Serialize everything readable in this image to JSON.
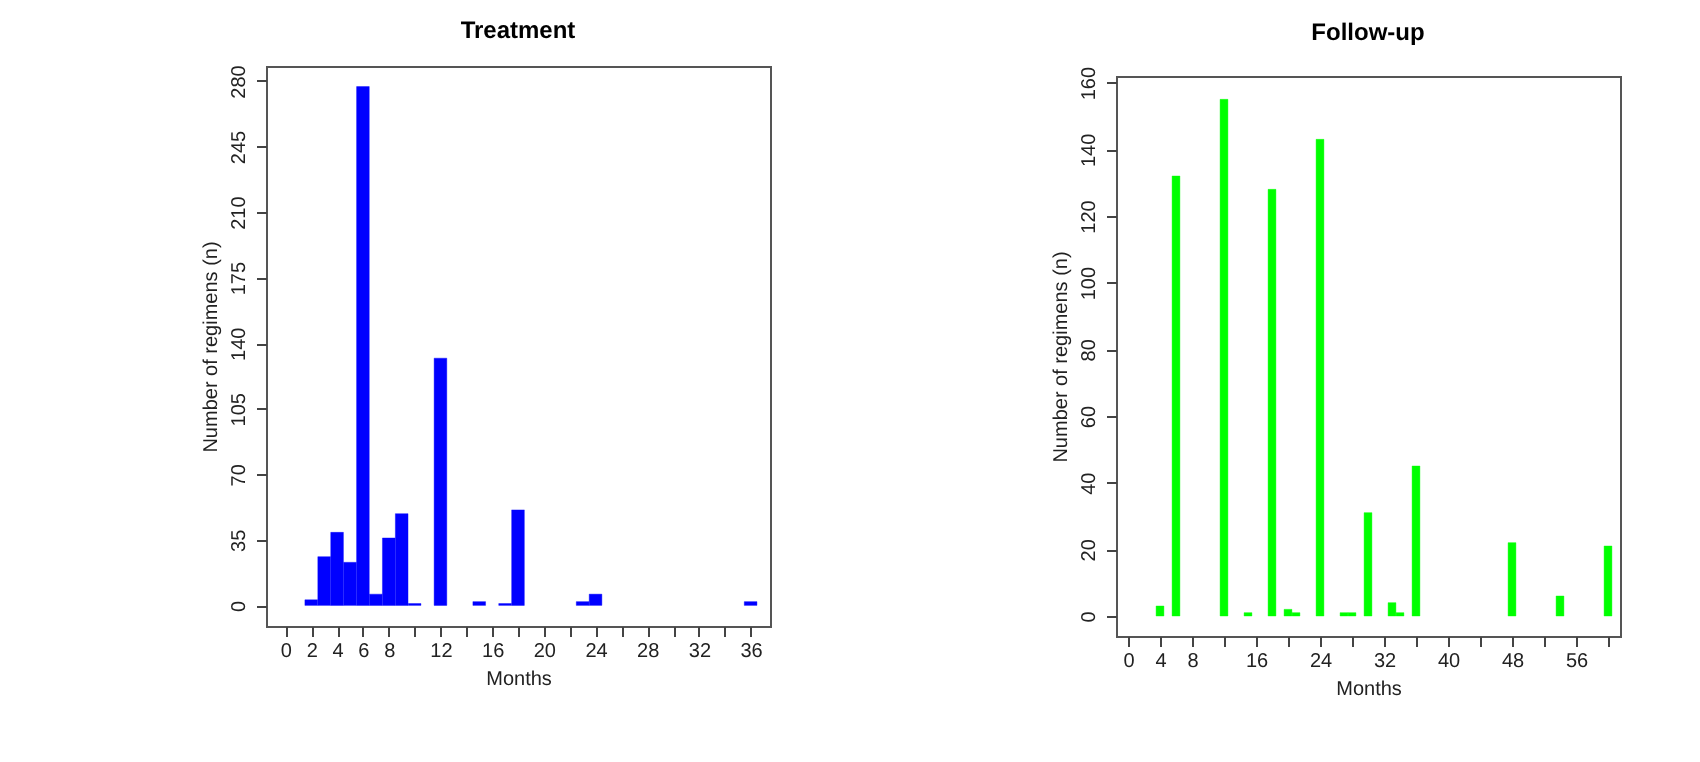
{
  "chart_data": [
    {
      "type": "bar",
      "title": "Treatment",
      "xlabel": "Months",
      "ylabel": "Number of regimens (n)",
      "x": [
        2,
        3,
        4,
        5,
        6,
        7,
        8,
        9,
        10,
        12,
        15,
        17,
        18,
        23,
        24,
        36
      ],
      "series": [
        {
          "color": "#0000ff",
          "values": [
            3,
            26,
            39,
            23,
            277,
            6,
            36,
            49,
            1,
            132,
            2,
            1,
            51,
            2,
            6,
            2
          ]
        }
      ],
      "xlim": [
        -1.5,
        37.5
      ],
      "ylim": [
        -11,
        288
      ],
      "xticks": [
        0,
        2,
        4,
        6,
        8,
        {
          "value": 10,
          "label": null
        },
        12,
        {
          "value": 14,
          "label": null
        },
        16,
        {
          "value": 18,
          "label": null
        },
        20,
        {
          "value": 22,
          "label": null
        },
        24,
        {
          "value": 26,
          "label": null
        },
        28,
        {
          "value": 30,
          "label": null
        },
        32,
        {
          "value": 34,
          "label": null
        },
        36
      ],
      "yticks": [
        0,
        35,
        70,
        105,
        140,
        175,
        210,
        245,
        280
      ],
      "grid": false,
      "legend": false
    },
    {
      "type": "bar",
      "title": "Follow-up",
      "xlabel": "Months",
      "ylabel": "Number of regimens (n)",
      "x": [
        4,
        6,
        12,
        15,
        18,
        20,
        21,
        24,
        27,
        28,
        30,
        33,
        34,
        36,
        48,
        54,
        60
      ],
      "series": [
        {
          "color": "#00ff00",
          "values": [
            3,
            132,
            155,
            1,
            128,
            2,
            1,
            143,
            1,
            1,
            31,
            4,
            1,
            45,
            22,
            6,
            21
          ]
        }
      ],
      "xlim": [
        -1.5,
        61.5
      ],
      "ylim": [
        -6,
        162
      ],
      "xticks": [
        0,
        4,
        8,
        {
          "value": 12,
          "label": null
        },
        16,
        {
          "value": 20,
          "label": null
        },
        24,
        {
          "value": 28,
          "label": null
        },
        32,
        {
          "value": 36,
          "label": null
        },
        40,
        {
          "value": 44,
          "label": null
        },
        48,
        {
          "value": 52,
          "label": null
        },
        56,
        {
          "value": 60,
          "label": null
        }
      ],
      "yticks": [
        0,
        20,
        40,
        60,
        80,
        100,
        120,
        140,
        160
      ],
      "grid": false,
      "legend": false
    }
  ]
}
